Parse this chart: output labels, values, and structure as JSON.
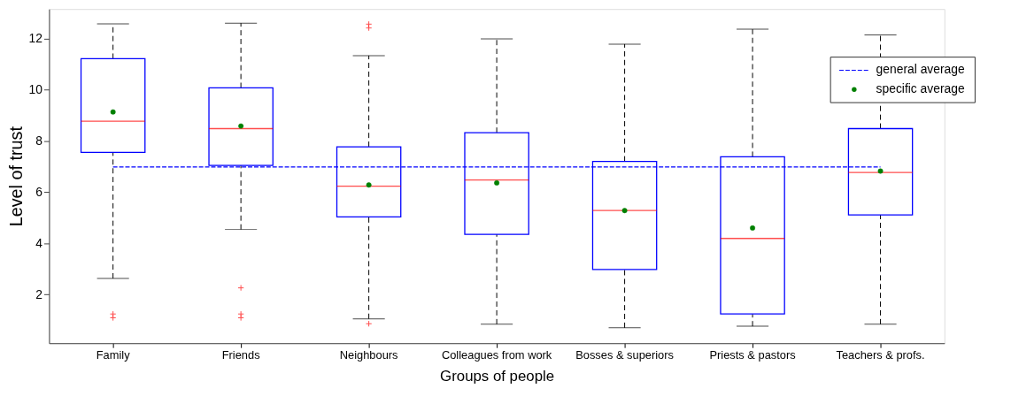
{
  "chart_data": {
    "type": "box",
    "xlabel": "Groups of people",
    "ylabel": "Level of trust",
    "categories": [
      "Family",
      "Friends",
      "Neighbours",
      "Colleagues from work",
      "Bosses & superiors",
      "Priests & pastors",
      "Teachers & profs."
    ],
    "ylim": [
      0.1,
      13.15
    ],
    "yticks": [
      2,
      4,
      6,
      8,
      10,
      12
    ],
    "grid": false,
    "legend": "top right",
    "series": [
      {
        "type": "box",
        "color": "#0000ff",
        "boxes": [
          {
            "low": 2.63,
            "q1": 7.55,
            "median": 8.77,
            "q3": 11.21,
            "high": 12.57,
            "outliers": [
              1.24,
              1.09
            ]
          },
          {
            "low": 4.54,
            "q1": 7.04,
            "median": 8.48,
            "q3": 10.07,
            "high": 12.6,
            "outliers": [
              2.26,
              1.24,
              1.09
            ]
          },
          {
            "low": 1.05,
            "q1": 5.03,
            "median": 6.23,
            "q3": 7.77,
            "high": 11.33,
            "outliers": [
              12.56,
              12.41,
              0.86
            ]
          },
          {
            "low": 0.84,
            "q1": 4.35,
            "median": 6.47,
            "q3": 8.32,
            "high": 11.98
          },
          {
            "low": 0.7,
            "q1": 2.98,
            "median": 5.28,
            "q3": 7.2,
            "high": 11.78
          },
          {
            "low": 0.76,
            "q1": 1.24,
            "median": 4.19,
            "q3": 7.38,
            "high": 12.36
          },
          {
            "low": 0.84,
            "q1": 5.11,
            "median": 6.77,
            "q3": 8.48,
            "high": 12.14
          }
        ]
      },
      {
        "type": "line",
        "name": "general average",
        "color": "#0000ff",
        "line_style": "dashed",
        "values": [
          6.98,
          6.98,
          6.98,
          6.98,
          6.98,
          6.98,
          6.98
        ]
      },
      {
        "type": "scatter",
        "name": "specific average",
        "color": "#008000",
        "marker": "circle",
        "x": [
          "Family",
          "Friends",
          "Neighbours",
          "Colleagues from work",
          "Bosses & superiors",
          "Priests & pastors",
          "Teachers & profs."
        ],
        "values": [
          9.13,
          8.58,
          6.28,
          6.36,
          5.28,
          4.6,
          6.82
        ]
      }
    ]
  }
}
